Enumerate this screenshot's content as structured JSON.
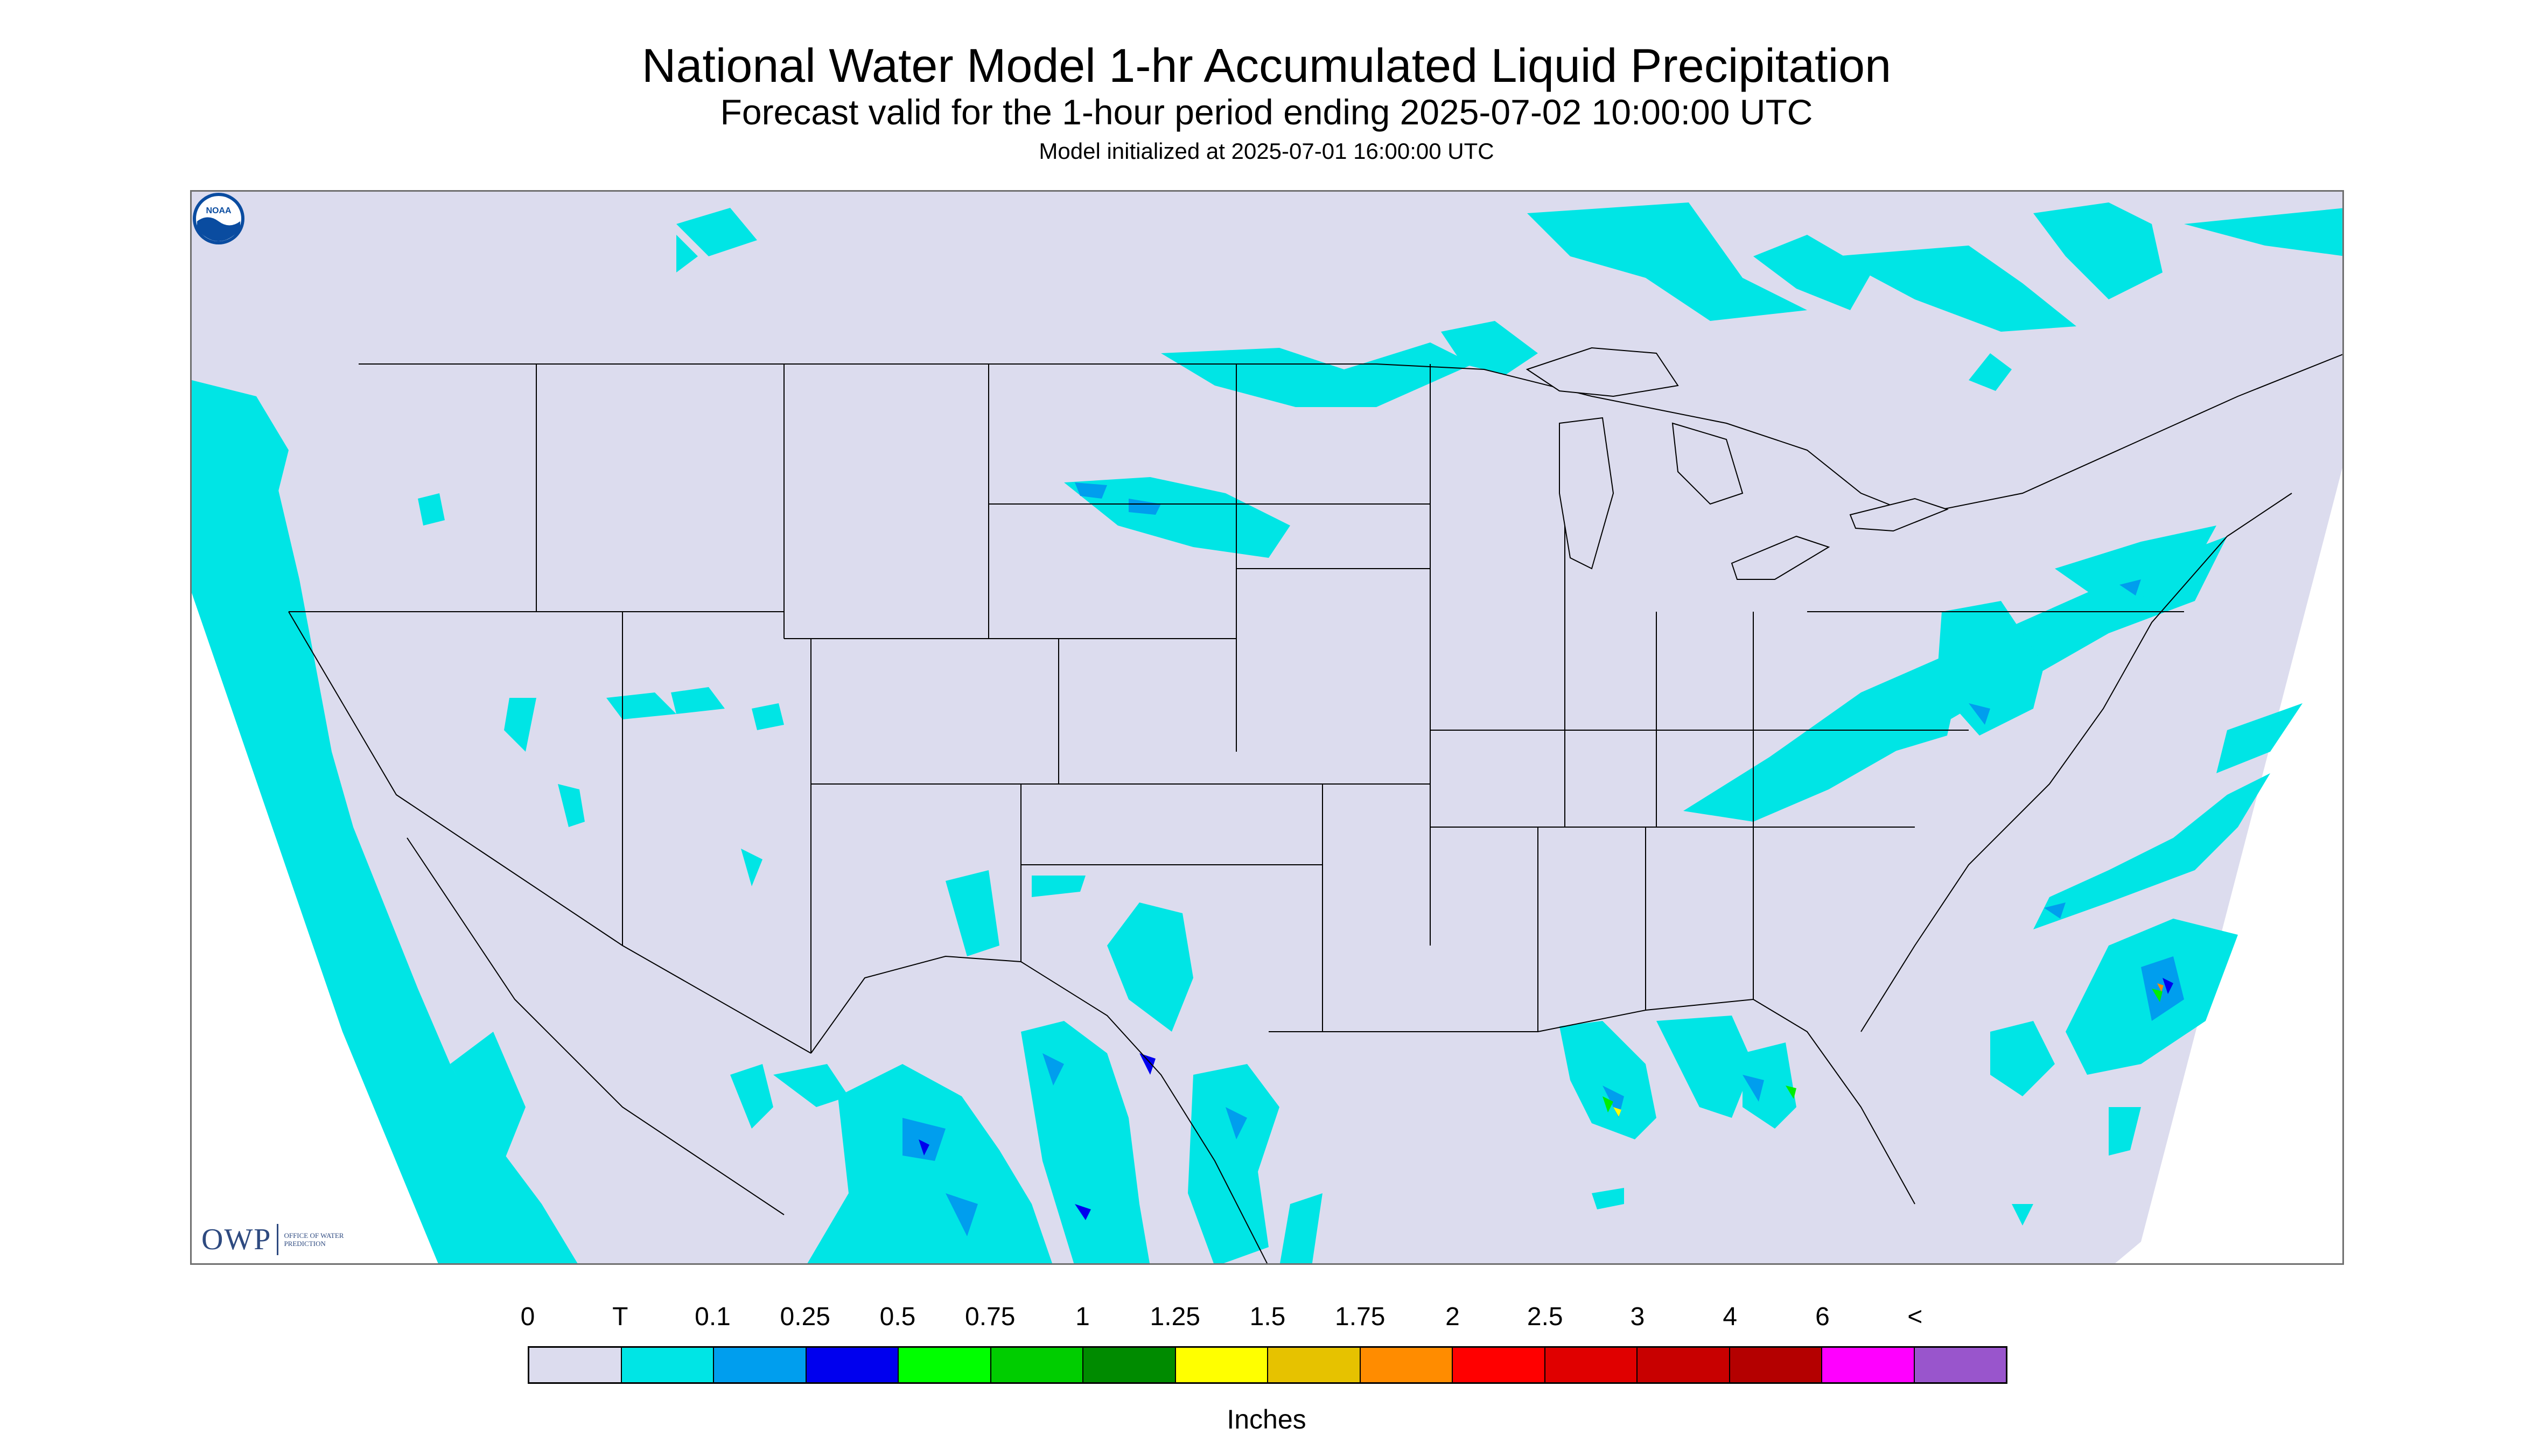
{
  "header": {
    "title": "National Water Model 1-hr Accumulated Liquid Precipitation",
    "subtitle": "Forecast valid for the 1-hour period ending 2025-07-02 10:00:00 UTC",
    "init_line": "Model initialized at 2025-07-01 16:00:00 UTC"
  },
  "map": {
    "region": "CONUS",
    "background_color": "#dcdcee",
    "outside_color": "#ffffff",
    "boundary_color": "#000000",
    "precip_colors_shown": [
      "#00e5e5",
      "#009eee",
      "#0000ff",
      "#00ee00",
      "#00b400",
      "#ffff00",
      "#e6b400",
      "#ff8c00"
    ]
  },
  "logos": {
    "owp_text": "OWP",
    "owp_office_text": "OFFICE OF WATER PREDICTION",
    "noaa_text": "NOAA"
  },
  "legend": {
    "tick_labels": [
      "0",
      "T",
      "0.1",
      "0.25",
      "0.5",
      "0.75",
      "1",
      "1.25",
      "1.5",
      "1.75",
      "2",
      "2.5",
      "3",
      "4",
      "6",
      "<"
    ],
    "colors": [
      "#dcdcee",
      "#00e5e5",
      "#009eee",
      "#0000ee",
      "#00ff00",
      "#00cd00",
      "#008b00",
      "#ffff00",
      "#e6c200",
      "#ff8c00",
      "#ff0000",
      "#e00000",
      "#c80000",
      "#b40000",
      "#ff00ff",
      "#9955cc"
    ],
    "units_label": "Inches"
  }
}
